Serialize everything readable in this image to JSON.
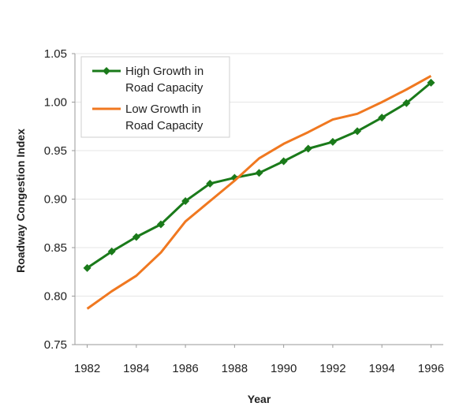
{
  "chart_data": {
    "type": "line",
    "title": "",
    "xlabel": "Year",
    "ylabel": "Roadway Congestion Index",
    "xlim": [
      1981.5,
      1996.5
    ],
    "ylim": [
      0.75,
      1.05
    ],
    "x_ticks": [
      1982,
      1984,
      1986,
      1988,
      1990,
      1992,
      1994,
      1996
    ],
    "y_ticks": [
      0.75,
      0.8,
      0.85,
      0.9,
      0.95,
      1.0,
      1.05
    ],
    "x_tick_labels": [
      "1982",
      "1984",
      "1986",
      "1988",
      "1990",
      "1992",
      "1994",
      "1996"
    ],
    "y_tick_labels": [
      "0.75",
      "0.80",
      "0.85",
      "0.90",
      "0.95",
      "1.00",
      "1.05"
    ],
    "grid": true,
    "legend_position": "top-left",
    "x": [
      1982,
      1983,
      1984,
      1985,
      1986,
      1987,
      1988,
      1989,
      1990,
      1991,
      1992,
      1993,
      1994,
      1995,
      1996
    ],
    "series": [
      {
        "name": "High Growth in Road Capacity",
        "legend_lines": [
          "High Growth in",
          "Road Capacity"
        ],
        "color": "#1a7a1a",
        "marker": "diamond",
        "values": [
          0.829,
          0.846,
          0.861,
          0.874,
          0.898,
          0.916,
          0.922,
          0.927,
          0.939,
          0.952,
          0.959,
          0.97,
          0.984,
          0.999,
          1.02
        ]
      },
      {
        "name": "Low Growth in Road Capacity",
        "legend_lines": [
          "Low Growth in",
          "Road Capacity"
        ],
        "color": "#f07820",
        "marker": "none",
        "values": [
          0.787,
          0.805,
          0.821,
          0.845,
          0.877,
          0.898,
          0.919,
          0.942,
          0.957,
          0.969,
          0.982,
          0.988,
          1.0,
          1.013,
          1.027
        ]
      }
    ]
  }
}
